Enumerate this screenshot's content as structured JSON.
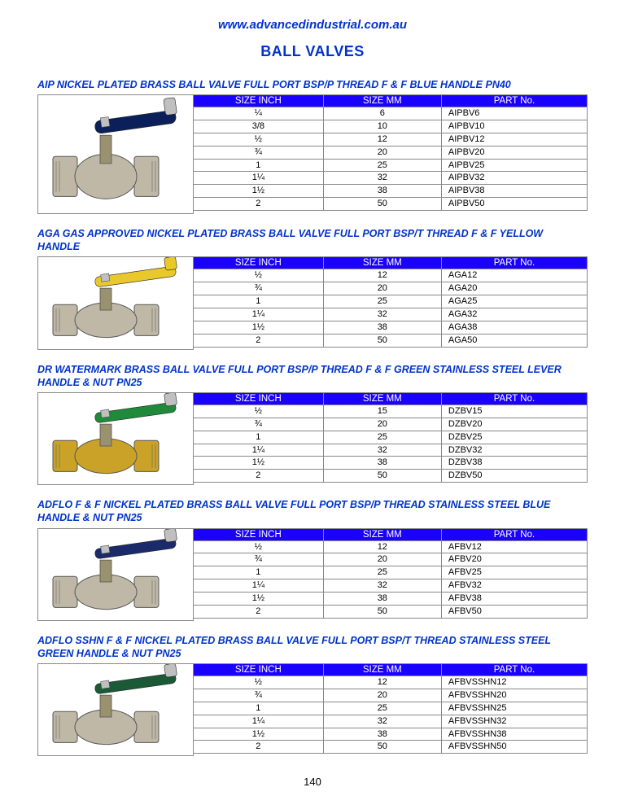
{
  "site_url": "www.advancedindustrial.com.au",
  "page_title": "BALL VALVES",
  "page_number": "140",
  "colors": {
    "link_blue": "#0033cc",
    "header_bg": "#1a00ff",
    "header_fg": "#ffffff",
    "border": "#888888",
    "background": "#ffffff"
  },
  "columns": [
    "SIZE INCH",
    "SIZE MM",
    "PART No."
  ],
  "sections": [
    {
      "title": "AIP NICKEL PLATED BRASS BALL VALVE FULL PORT BSP/P THREAD F & F BLUE HANDLE PN40",
      "handle_color": "#0b1f5a",
      "handle_tip": "#c0c0c0",
      "body_color": "#bfb8a6",
      "rows": [
        [
          "¼",
          "6",
          "AIPBV6"
        ],
        [
          "3/8",
          "10",
          "AIPBV10"
        ],
        [
          "½",
          "12",
          "AIPBV12"
        ],
        [
          "¾",
          "20",
          "AIPBV20"
        ],
        [
          "1",
          "25",
          "AIPBV25"
        ],
        [
          "1¼",
          "32",
          "AIPBV32"
        ],
        [
          "1½",
          "38",
          "AIPBV38"
        ],
        [
          "2",
          "50",
          "AIPBV50"
        ]
      ]
    },
    {
      "title": "AGA GAS APPROVED NICKEL PLATED BRASS BALL VALVE FULL PORT BSP/T THREAD F & F YELLOW HANDLE",
      "handle_color": "#e8c82a",
      "handle_tip": "#e8c82a",
      "body_color": "#bfb8a6",
      "rows": [
        [
          "½",
          "12",
          "AGA12"
        ],
        [
          "¾",
          "20",
          "AGA20"
        ],
        [
          "1",
          "25",
          "AGA25"
        ],
        [
          "1¼",
          "32",
          "AGA32"
        ],
        [
          "1½",
          "38",
          "AGA38"
        ],
        [
          "2",
          "50",
          "AGA50"
        ]
      ]
    },
    {
      "title": "DR WATERMARK BRASS BALL VALVE FULL PORT BSP/P THREAD F & F GREEN STAINLESS STEEL LEVER HANDLE & NUT PN25",
      "handle_color": "#1f8a3a",
      "handle_tip": "#c0c0c0",
      "body_color": "#c9a227",
      "rows": [
        [
          "½",
          "15",
          "DZBV15"
        ],
        [
          "¾",
          "20",
          "DZBV20"
        ],
        [
          "1",
          "25",
          "DZBV25"
        ],
        [
          "1¼",
          "32",
          "DZBV32"
        ],
        [
          "1½",
          "38",
          "DZBV38"
        ],
        [
          "2",
          "50",
          "DZBV50"
        ]
      ]
    },
    {
      "title": "ADFLO F & F NICKEL PLATED BRASS BALL VALVE FULL PORT BSP/P THREAD STAINLESS STEEL BLUE HANDLE & NUT PN25",
      "handle_color": "#1a2a6b",
      "handle_tip": "#c0c0c0",
      "body_color": "#bfb8a6",
      "rows": [
        [
          "½",
          "12",
          "AFBV12"
        ],
        [
          "¾",
          "20",
          "AFBV20"
        ],
        [
          "1",
          "25",
          "AFBV25"
        ],
        [
          "1¼",
          "32",
          "AFBV32"
        ],
        [
          "1½",
          "38",
          "AFBV38"
        ],
        [
          "2",
          "50",
          "AFBV50"
        ]
      ]
    },
    {
      "title": "ADFLO SSHN F & F NICKEL PLATED BRASS BALL VALVE FULL PORT BSP/T THREAD STAINLESS STEEL GREEN HANDLE & NUT PN25",
      "handle_color": "#1a5a37",
      "handle_tip": "#c0c0c0",
      "body_color": "#bfb8a6",
      "rows": [
        [
          "½",
          "12",
          "AFBVSSHN12"
        ],
        [
          "¾",
          "20",
          "AFBVSSHN20"
        ],
        [
          "1",
          "25",
          "AFBVSSHN25"
        ],
        [
          "1¼",
          "32",
          "AFBVSSHN32"
        ],
        [
          "1½",
          "38",
          "AFBVSSHN38"
        ],
        [
          "2",
          "50",
          "AFBVSSHN50"
        ]
      ]
    }
  ]
}
